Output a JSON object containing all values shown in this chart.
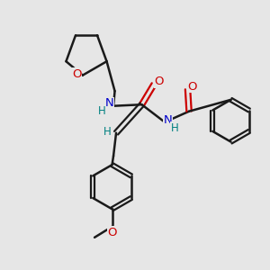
{
  "bg_color": "#e6e6e6",
  "bond_color": "#1a1a1a",
  "N_color": "#0000cc",
  "O_color": "#cc0000",
  "H_color": "#008080",
  "figsize": [
    3.0,
    3.0
  ],
  "dpi": 100,
  "xlim": [
    0,
    10
  ],
  "ylim": [
    0,
    10
  ]
}
